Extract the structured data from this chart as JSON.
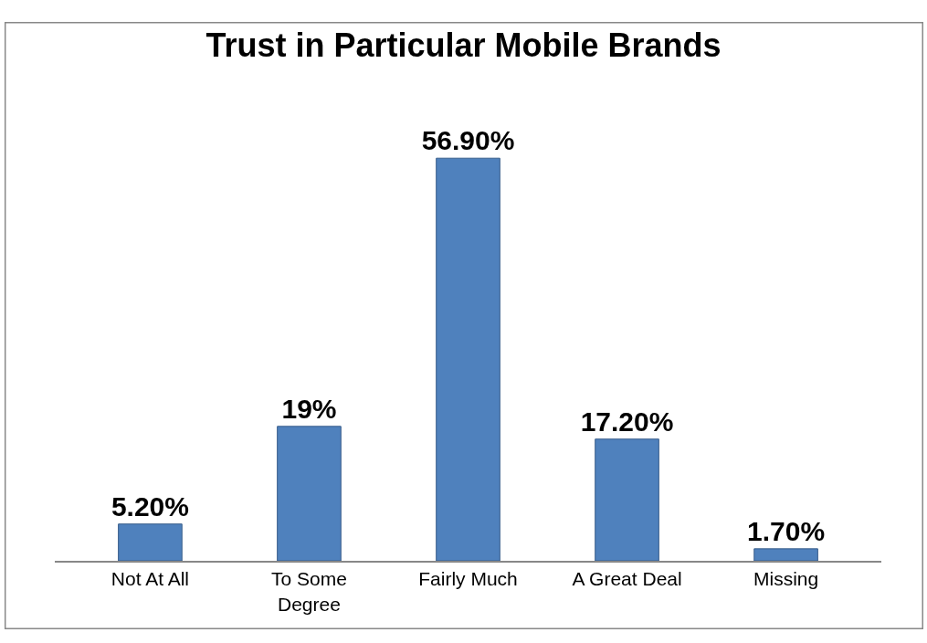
{
  "chart_data": {
    "type": "bar",
    "title": "Trust in Particular Mobile Brands",
    "categories": [
      "Not At All",
      "To Some Degree",
      "Fairly Much",
      "A Great Deal",
      "Missing"
    ],
    "values": [
      5.2,
      19,
      56.9,
      17.2,
      1.7
    ],
    "value_labels": [
      "5.20%",
      "19%",
      "56.90%",
      "17.20%",
      "1.70%"
    ],
    "color": "#4f81bd",
    "legend": false
  }
}
